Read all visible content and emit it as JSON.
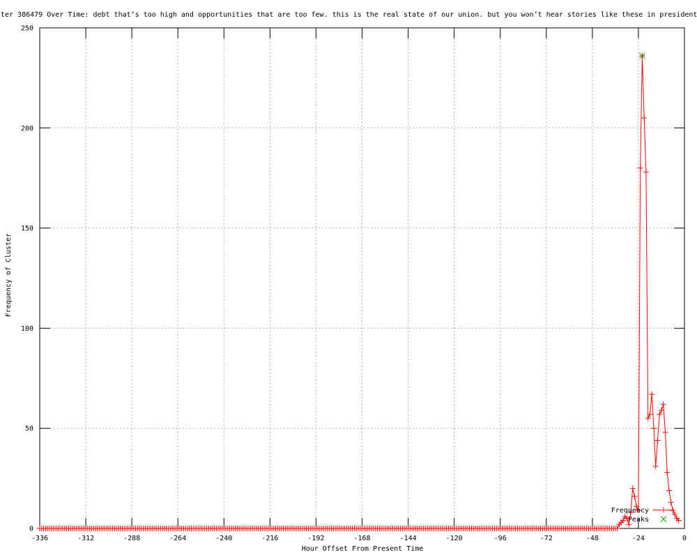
{
  "page": {
    "background": "#ffffff"
  },
  "chart_data": {
    "type": "line",
    "title": "ter 386479 Over Time: debt that’s too high and opportunities that are too few. this is the real state of our union. but you won’t hear stories like these in president",
    "xlabel": "Hour Offset From Present Time",
    "ylabel": "Frequency of Cluster",
    "xlim": [
      -336,
      0
    ],
    "ylim": [
      0,
      250
    ],
    "x_ticks": [
      -336,
      -312,
      -288,
      -264,
      -240,
      -216,
      -192,
      -168,
      -144,
      -120,
      -96,
      -72,
      -48,
      -24,
      0
    ],
    "y_ticks": [
      0,
      50,
      100,
      150,
      200,
      250
    ],
    "grid": true,
    "legend_position": "bottom-right-inside",
    "colors": {
      "grid": "#b0b0b0",
      "axis": "#000000",
      "text": "#000000",
      "frequency": "#ff0000",
      "peaks": "#00b000"
    },
    "series": [
      {
        "name": "Frequency",
        "color": "#ff0000",
        "marker": "plus",
        "line": true,
        "zero_run": {
          "from": -336,
          "to": -35,
          "value": 0
        },
        "points": [
          [
            -34,
            2
          ],
          [
            -33,
            3
          ],
          [
            -32,
            4
          ],
          [
            -31,
            6
          ],
          [
            -30,
            5
          ],
          [
            -29,
            2
          ],
          [
            -28,
            8
          ],
          [
            -27,
            20
          ],
          [
            -26,
            16
          ],
          [
            -25,
            11
          ],
          [
            -24,
            9
          ],
          [
            -23,
            180
          ],
          [
            -22,
            236
          ],
          [
            -21,
            205
          ],
          [
            -20,
            178
          ],
          [
            -19,
            55
          ],
          [
            -18,
            57
          ],
          [
            -17,
            67
          ],
          [
            -16,
            50
          ],
          [
            -15,
            31
          ],
          [
            -14,
            44
          ],
          [
            -13,
            57
          ],
          [
            -12,
            59
          ],
          [
            -11,
            62
          ],
          [
            -10,
            48
          ],
          [
            -9,
            28
          ],
          [
            -8,
            19
          ],
          [
            -7,
            13
          ],
          [
            -6,
            9
          ],
          [
            -5,
            7
          ],
          [
            -4,
            5
          ],
          [
            -3,
            4
          ]
        ]
      },
      {
        "name": "Peaks",
        "color": "#00b000",
        "marker": "cross",
        "line": false,
        "points": [
          [
            -22,
            236
          ]
        ]
      }
    ]
  }
}
